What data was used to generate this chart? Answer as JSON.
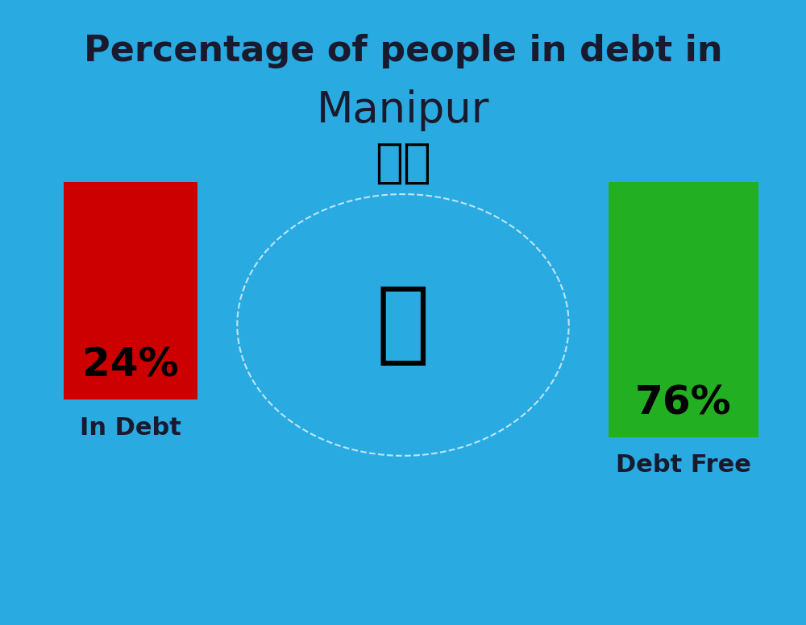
{
  "background_color": "#29ABE2",
  "title_line1": "Percentage of people in debt in",
  "title_line2": "Manipur",
  "title_color": "#1a1a2e",
  "flag_emoji": "🇮🇳",
  "bar1_value": 24,
  "bar1_label": "24%",
  "bar1_color": "#CC0000",
  "bar1_caption": "In Debt",
  "bar2_value": 76,
  "bar2_label": "76%",
  "bar2_color": "#22B022",
  "bar2_caption": "Debt Free",
  "label_color": "#1a1a2e",
  "pct_color": "#000000",
  "title_fontsize": 32,
  "subtitle_fontsize": 38,
  "bar_pct_fontsize": 36,
  "caption_fontsize": 22
}
